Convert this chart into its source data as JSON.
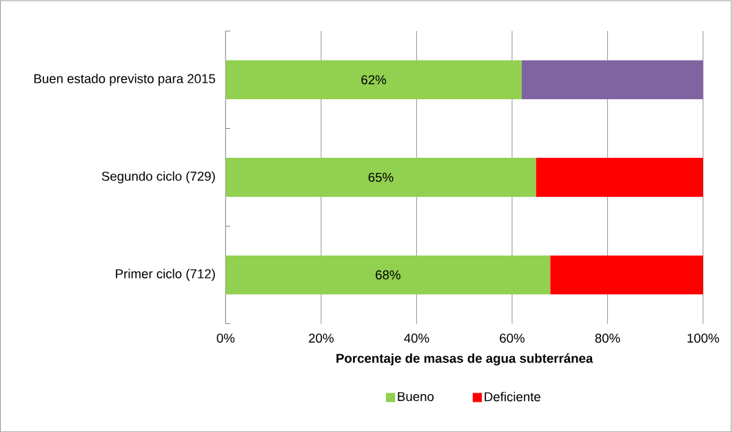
{
  "chart_data": {
    "type": "bar",
    "orientation": "horizontal",
    "stacked": true,
    "categories": [
      "Buen estado previsto para 2015",
      "Segundo ciclo (729)",
      "Primer ciclo (712)"
    ],
    "series": [
      {
        "name": "Bueno",
        "color": "#92d050",
        "values": [
          62,
          65,
          68
        ],
        "value_labels": [
          "62%",
          "65%",
          "68%"
        ]
      },
      {
        "name": "Deficiente",
        "color": "#ff0000",
        "colors": [
          "#8064a2",
          "#ff0000",
          "#ff0000"
        ],
        "values": [
          38,
          35,
          32
        ]
      }
    ],
    "xlabel": "Porcentaje de masas de agua subterránea",
    "xlim": [
      0,
      100
    ],
    "xticks": [
      {
        "value": 0,
        "label": "0%"
      },
      {
        "value": 20,
        "label": "20%"
      },
      {
        "value": 40,
        "label": "40%"
      },
      {
        "value": 60,
        "label": "60%"
      },
      {
        "value": 80,
        "label": "80%"
      },
      {
        "value": 100,
        "label": "100%"
      }
    ],
    "grid": "x",
    "legend": "bottom"
  }
}
